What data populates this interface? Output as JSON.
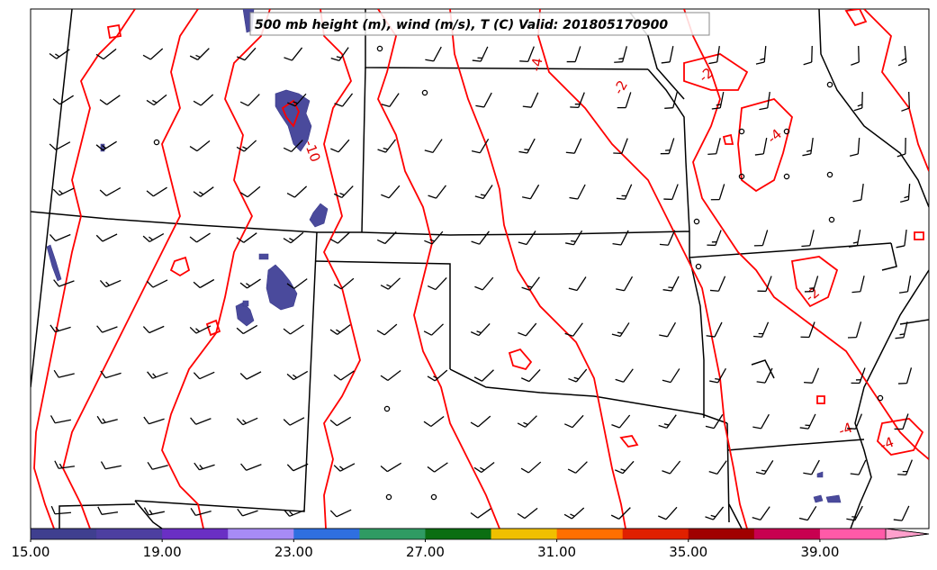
{
  "title": "500 mb height (m), wind (m/s), T (C) Valid: 201805170900",
  "colorbar": {
    "ticks": [
      "15.00",
      "19.00",
      "23.00",
      "27.00",
      "31.00",
      "35.00",
      "39.00"
    ],
    "colors": [
      "#3f3f8f",
      "#4d3fa0",
      "#6a2fc4",
      "#a78bf5",
      "#2f6fe0",
      "#2f9b63",
      "#0b6e12",
      "#f0c000",
      "#ff6f00",
      "#e02000",
      "#a00000",
      "#c80050",
      "#ff5aa8",
      "#ffa0cc"
    ]
  },
  "contour_labels": [
    "-10",
    "-4",
    "-2",
    "-2",
    "-4",
    "-2",
    "-4",
    "-4"
  ],
  "colors": {
    "contour": "#ff0000",
    "state_lines": "#000000",
    "shading": "#4a4a9c",
    "barbs": "#000000"
  }
}
